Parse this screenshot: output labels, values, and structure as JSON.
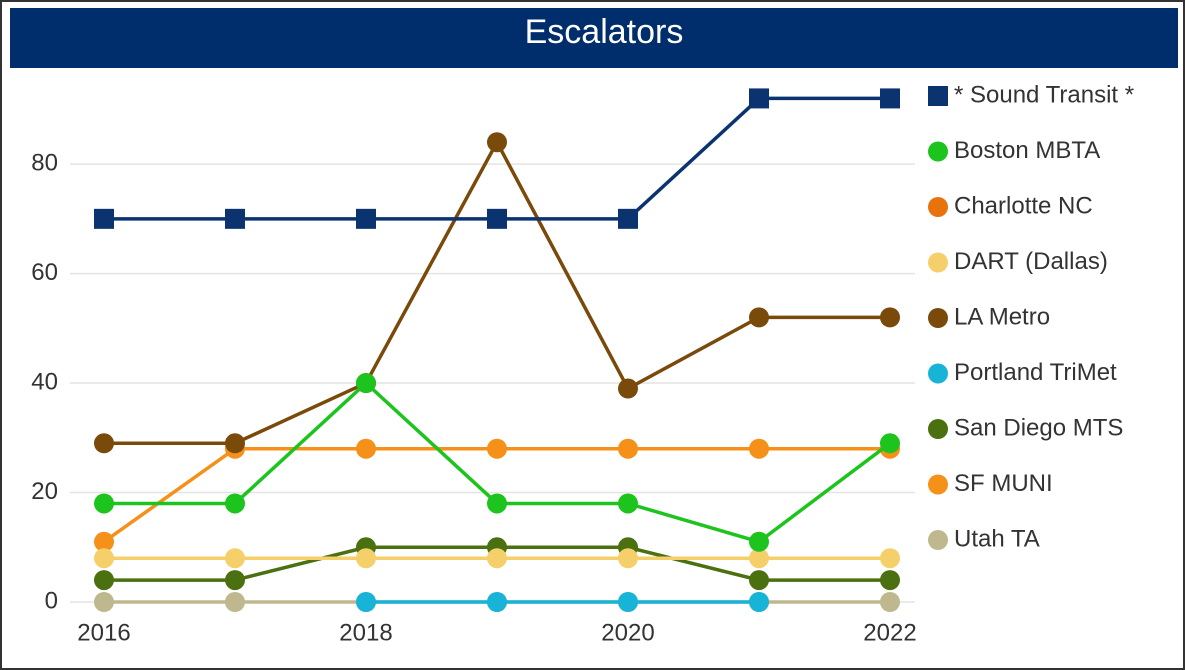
{
  "chart_data": {
    "type": "line",
    "title": "Escalators",
    "x": [
      2016,
      2017,
      2018,
      2019,
      2020,
      2021,
      2022
    ],
    "xlim": [
      2016,
      2022
    ],
    "xticks": [
      2016,
      2018,
      2020,
      2022
    ],
    "ylim": [
      0,
      95
    ],
    "yticks": [
      0,
      20,
      40,
      60,
      80
    ],
    "grid": true,
    "legend": "right",
    "series": [
      {
        "name": "* Sound Transit *",
        "color": "#0a3370",
        "marker": "square",
        "values": [
          70,
          70,
          70,
          70,
          70,
          92,
          92
        ]
      },
      {
        "name": "Boston MBTA",
        "color": "#1ec41e",
        "values": [
          18,
          18,
          40,
          18,
          18,
          11,
          29
        ]
      },
      {
        "name": "Charlotte NC",
        "color": "#e8720c",
        "values": [
          null,
          null,
          null,
          null,
          null,
          null,
          null
        ]
      },
      {
        "name": "DART (Dallas)",
        "color": "#f5d06a",
        "values": [
          8,
          8,
          8,
          8,
          8,
          8,
          8
        ]
      },
      {
        "name": "LA Metro",
        "color": "#7a4a0a",
        "values": [
          29,
          29,
          40,
          84,
          39,
          52,
          52
        ]
      },
      {
        "name": "Portland TriMet",
        "color": "#18b4d8",
        "values": [
          null,
          null,
          0,
          0,
          0,
          0,
          null
        ]
      },
      {
        "name": "San Diego MTS",
        "color": "#4a7010",
        "values": [
          4,
          4,
          10,
          10,
          10,
          4,
          4
        ]
      },
      {
        "name": "SF MUNI",
        "color": "#f59019",
        "values": [
          11,
          28,
          28,
          28,
          28,
          28,
          28
        ]
      },
      {
        "name": "Utah TA",
        "color": "#bfb88f",
        "values": [
          0,
          0,
          0,
          0,
          0,
          0,
          0
        ]
      }
    ]
  }
}
